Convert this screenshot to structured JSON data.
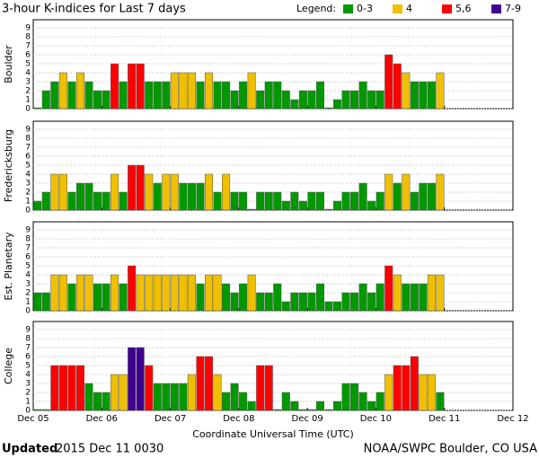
{
  "title": "3-hour K-indices for Last 7 days",
  "legend": {
    "title": "Legend:",
    "items": [
      {
        "label": "0-3",
        "color": "#009900"
      },
      {
        "label": "4",
        "color": "#f0c000"
      },
      {
        "label": "5,6",
        "color": "#ff0000"
      },
      {
        "label": "7-9",
        "color": "#400090"
      }
    ]
  },
  "xlabel": "Coordinate Universal Time (UTC)",
  "xlim": [
    0,
    56
  ],
  "xticks": [
    {
      "value": 0,
      "label": "Dec 05"
    },
    {
      "value": 8,
      "label": "Dec 06"
    },
    {
      "value": 16,
      "label": "Dec 07"
    },
    {
      "value": 24,
      "label": "Dec 08"
    },
    {
      "value": 32,
      "label": "Dec 09"
    },
    {
      "value": 40,
      "label": "Dec 10"
    },
    {
      "value": 48,
      "label": "Dec 11"
    },
    {
      "value": 56,
      "label": "Dec 12"
    }
  ],
  "footer": {
    "updated_label": "Updated",
    "updated_time": "2015 Dec 11 0030",
    "source": "NOAA/SWPC Boulder, CO USA"
  },
  "chart_data": [
    {
      "type": "bar",
      "ylabel": "Boulder",
      "ylim": [
        0,
        9
      ],
      "yticks": [
        0,
        1,
        2,
        3,
        4,
        5,
        6,
        7,
        8,
        9
      ],
      "grid": true,
      "values": [
        0,
        2,
        3,
        4,
        3,
        4,
        3,
        2,
        2,
        5,
        3,
        5,
        5,
        3,
        3,
        3,
        4,
        4,
        4,
        3,
        4,
        3,
        3,
        2,
        3,
        4,
        2,
        3,
        3,
        2,
        1,
        2,
        2,
        3,
        0,
        1,
        2,
        2,
        3,
        2,
        2,
        6,
        5,
        4,
        3,
        3,
        3,
        4
      ]
    },
    {
      "type": "bar",
      "ylabel": "Fredericksburg",
      "ylim": [
        0,
        9
      ],
      "yticks": [
        0,
        1,
        2,
        3,
        4,
        5,
        6,
        7,
        8,
        9
      ],
      "grid": true,
      "values": [
        1,
        2,
        4,
        4,
        2,
        3,
        3,
        2,
        2,
        4,
        2,
        5,
        5,
        4,
        3,
        4,
        4,
        3,
        3,
        3,
        4,
        2,
        4,
        2,
        2,
        0,
        2,
        2,
        2,
        1,
        2,
        1,
        2,
        2,
        0,
        1,
        2,
        2,
        3,
        1,
        2,
        4,
        3,
        4,
        2,
        3,
        3,
        4
      ]
    },
    {
      "type": "bar",
      "ylabel": "Est. Planetary",
      "ylim": [
        0,
        9
      ],
      "yticks": [
        0,
        1,
        2,
        3,
        4,
        5,
        6,
        7,
        8,
        9
      ],
      "grid": true,
      "values": [
        2,
        2,
        4,
        4,
        3,
        4,
        4,
        3,
        3,
        4,
        3,
        5,
        4,
        4,
        4,
        4,
        4,
        4,
        4,
        3,
        4,
        4,
        3,
        2,
        3,
        4,
        2,
        2,
        3,
        1,
        2,
        2,
        2,
        3,
        1,
        1,
        2,
        2,
        3,
        2,
        3,
        5,
        4,
        3,
        3,
        3,
        4,
        4
      ]
    },
    {
      "type": "bar",
      "ylabel": "College",
      "ylim": [
        0,
        9
      ],
      "yticks": [
        0,
        1,
        2,
        3,
        4,
        5,
        6,
        7,
        8,
        9
      ],
      "grid": true,
      "values": [
        0,
        0,
        5,
        5,
        5,
        5,
        3,
        2,
        2,
        4,
        4,
        7,
        7,
        5,
        3,
        3,
        3,
        3,
        4,
        6,
        6,
        4,
        2,
        3,
        2,
        1,
        5,
        5,
        0,
        2,
        1,
        0,
        0,
        1,
        0,
        1,
        3,
        3,
        2,
        1,
        2,
        4,
        5,
        5,
        6,
        4,
        4,
        2
      ]
    }
  ]
}
